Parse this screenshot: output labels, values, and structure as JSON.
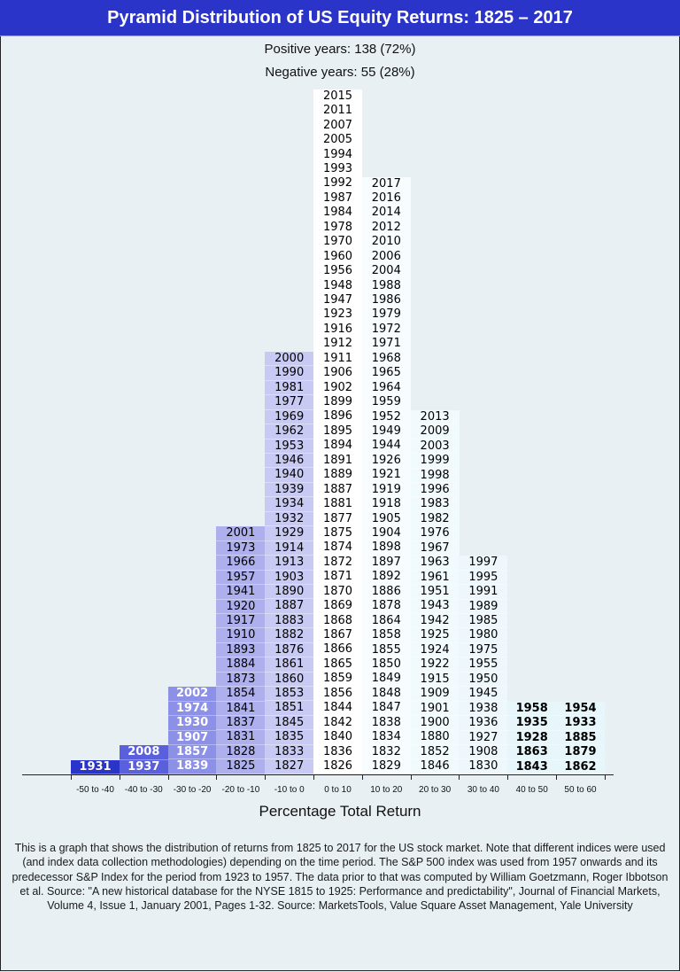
{
  "title": "Pyramid Distribution of US Equity Returns: 1825 – 2017",
  "stats": {
    "positive": "Positive years: 138 (72%)",
    "negative": "Negative years: 55 (28%)"
  },
  "xaxis_title": "Percentage Total Return",
  "note": "This is a graph that shows the distribution of returns from 1825 to 2017 for the US stock market. Note that different indices were used (and index data collection methodologies) depending on the time period. The S&P 500 index was used from 1957 onwards and its predecessor S&P Index for the period from 1923 to 1957. The data prior to that was computed by William Goetzmann, Roger Ibbotson et al. Source: \"A new historical database for the NYSE 1815 to 1925: Performance and predictability\", Journal of Financial Markets, Volume 4, Issue 1, January 2001, Pages 1-32. Source: MarketsTools, Value Square Asset Management, Yale University",
  "colors": {
    "title_bar": "#2b34c9",
    "background": "#e9f0f4",
    "bins": [
      "#2b34c9",
      "#5a60dc",
      "#8c90e6",
      "#aeb0ee",
      "#c8caf4",
      "#ffffff",
      "#f7fcff",
      "#f1fafd",
      "#eef8fc",
      "#e6f6fa",
      "#e6f6fa"
    ]
  },
  "chart_data": {
    "type": "bar",
    "title": "Pyramid Distribution of US Equity Returns: 1825 – 2017",
    "xlabel": "Percentage Total Return",
    "ylabel": "",
    "categories": [
      "-50 to -40",
      "-40 to -30",
      "-30 to -20",
      "-20 to -10",
      "-10 to 0",
      "0 to 10",
      "10 to 20",
      "20 to 30",
      "30 to 40",
      "40 to 50",
      "50 to 60"
    ],
    "values": [
      1,
      2,
      6,
      17,
      29,
      47,
      41,
      25,
      15,
      5,
      5
    ],
    "years": [
      [
        "1931"
      ],
      [
        "2008",
        "1937"
      ],
      [
        "2002",
        "1974",
        "1930",
        "1907",
        "1857",
        "1839"
      ],
      [
        "2001",
        "1973",
        "1966",
        "1957",
        "1941",
        "1920",
        "1917",
        "1910",
        "1893",
        "1884",
        "1873",
        "1854",
        "1841",
        "1837",
        "1831",
        "1828",
        "1825"
      ],
      [
        "2000",
        "1990",
        "1981",
        "1977",
        "1969",
        "1962",
        "1953",
        "1946",
        "1940",
        "1939",
        "1934",
        "1932",
        "1929",
        "1914",
        "1913",
        "1903",
        "1890",
        "1887",
        "1883",
        "1882",
        "1876",
        "1861",
        "1860",
        "1853",
        "1851",
        "1845",
        "1835",
        "1833",
        "1827"
      ],
      [
        "2015",
        "2011",
        "2007",
        "2005",
        "1994",
        "1993",
        "1992",
        "1987",
        "1984",
        "1978",
        "1970",
        "1960",
        "1956",
        "1948",
        "1947",
        "1923",
        "1916",
        "1912",
        "1911",
        "1906",
        "1902",
        "1899",
        "1896",
        "1895",
        "1894",
        "1891",
        "1889",
        "1887",
        "1881",
        "1877",
        "1875",
        "1874",
        "1872",
        "1871",
        "1870",
        "1869",
        "1868",
        "1867",
        "1866",
        "1865",
        "1859",
        "1856",
        "1844",
        "1842",
        "1840",
        "1836",
        "1826"
      ],
      [
        "2017",
        "2016",
        "2014",
        "2012",
        "2010",
        "2006",
        "2004",
        "1988",
        "1986",
        "1979",
        "1972",
        "1971",
        "1968",
        "1965",
        "1964",
        "1959",
        "1952",
        "1949",
        "1944",
        "1926",
        "1921",
        "1919",
        "1918",
        "1905",
        "1904",
        "1898",
        "1897",
        "1892",
        "1886",
        "1878",
        "1864",
        "1858",
        "1855",
        "1850",
        "1849",
        "1848",
        "1847",
        "1838",
        "1834",
        "1832",
        "1829"
      ],
      [
        "2013",
        "2009",
        "2003",
        "1999",
        "1998",
        "1996",
        "1983",
        "1982",
        "1976",
        "1967",
        "1963",
        "1961",
        "1951",
        "1943",
        "1942",
        "1925",
        "1924",
        "1922",
        "1915",
        "1909",
        "1901",
        "1900",
        "1880",
        "1852",
        "1846"
      ],
      [
        "1997",
        "1995",
        "1991",
        "1989",
        "1985",
        "1980",
        "1975",
        "1955",
        "1950",
        "1945",
        "1938",
        "1936",
        "1927",
        "1908",
        "1830"
      ],
      [
        "1958",
        "1935",
        "1928",
        "1863",
        "1843"
      ],
      [
        "1954",
        "1933",
        "1885",
        "1879",
        "1862"
      ]
    ],
    "positive_years": 138,
    "negative_years": 55,
    "grid": false,
    "legend": null
  }
}
